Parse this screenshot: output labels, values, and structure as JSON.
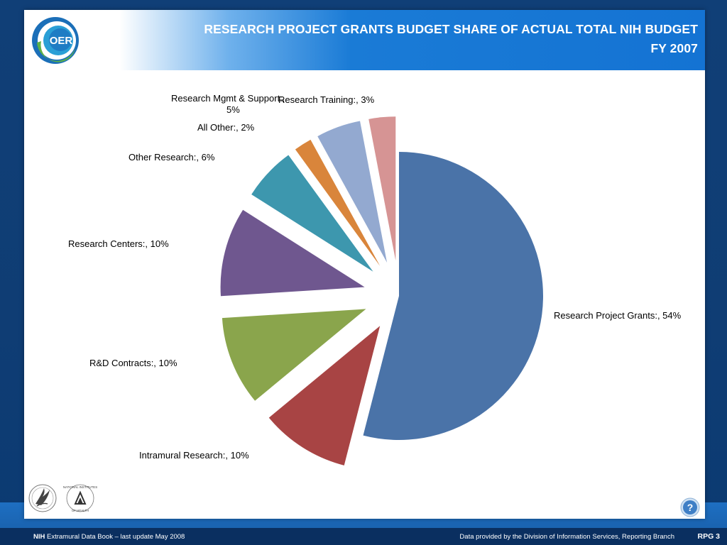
{
  "header": {
    "logo_text": "OER",
    "title_line1": "RESEARCH PROJECT GRANTS BUDGET SHARE OF ACTUAL TOTAL NIH BUDGET",
    "title_line2": "FY 2007"
  },
  "chart_data": {
    "type": "pie",
    "title": "RESEARCH PROJECT GRANTS BUDGET SHARE OF ACTUAL TOTAL NIH BUDGET FY 2007",
    "exploded": true,
    "slices": [
      {
        "name": "Research Project Grants:",
        "value": 54,
        "label": "Research Project Grants:, 54%",
        "color": "#4a73a8"
      },
      {
        "name": "Intramural Research:",
        "value": 10,
        "label": "Intramural Research:, 10%",
        "color": "#a84444"
      },
      {
        "name": "R&D Contracts:",
        "value": 10,
        "label": "R&D Contracts:, 10%",
        "color": "#8aa54c"
      },
      {
        "name": "Research Centers:",
        "value": 10,
        "label": "Research Centers:, 10%",
        "color": "#6f578f"
      },
      {
        "name": "Other Research:",
        "value": 6,
        "label": "Other Research:, 6%",
        "color": "#3d97ae"
      },
      {
        "name": "All Other:",
        "value": 2,
        "label": "All Other:, 2%",
        "color": "#d9853b"
      },
      {
        "name": "Research Mgmt & Support:",
        "value": 5,
        "label_line1": "Research Mgmt & Support:,",
        "label_line2": "5%",
        "color": "#93a9d0"
      },
      {
        "name": "Research Training:",
        "value": 3,
        "label": "Research Training:, 3%",
        "color": "#d69494"
      }
    ]
  },
  "footer": {
    "brand": "NIH",
    "left_text": " Extramural Data Book – last update May 2008",
    "right_text": "Data provided by the Division of Information Services, Reporting Branch",
    "page": "RPG 3"
  },
  "help": {
    "icon": "question-icon",
    "glyph": "?"
  },
  "logos": {
    "hhs": "hhs-eagle-logo",
    "nih": "nih-logo"
  },
  "nih_logo_text": {
    "top": "NATIONAL INSTITUTES",
    "bottom": "OF HEALTH"
  }
}
